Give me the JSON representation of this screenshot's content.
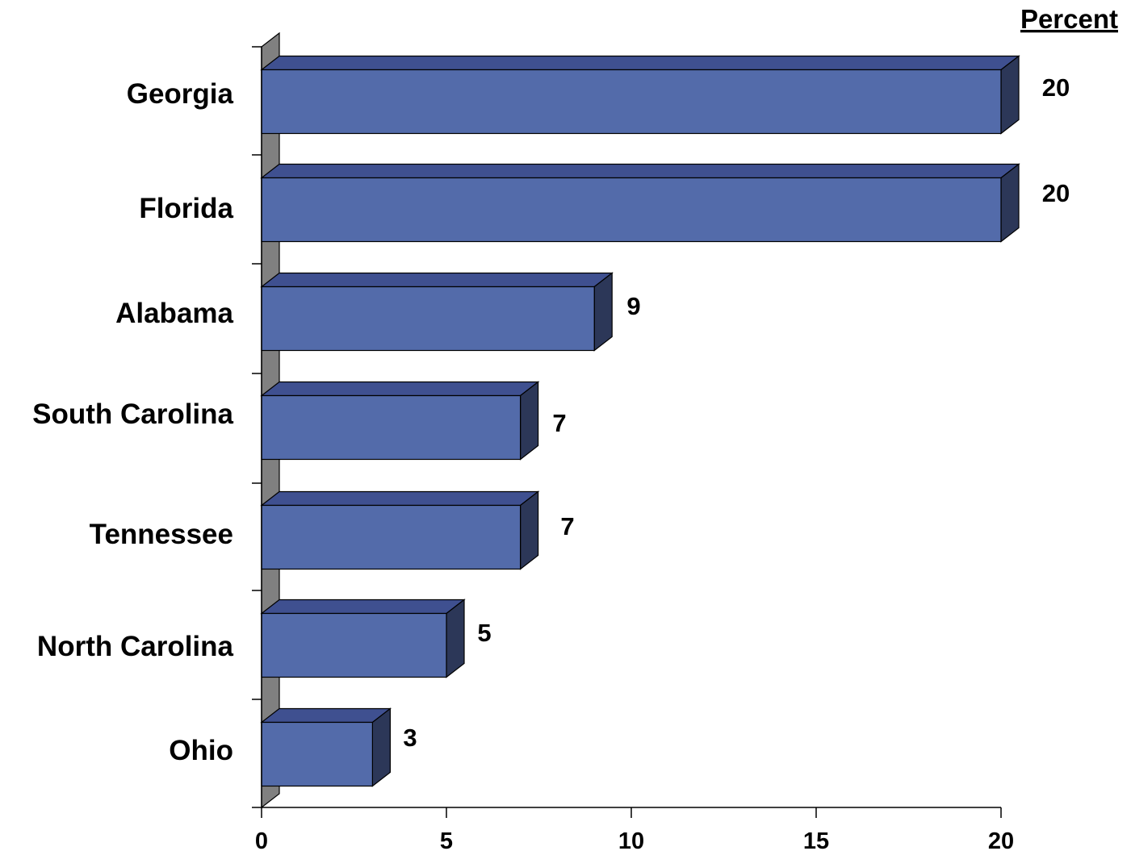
{
  "chart_data": {
    "type": "bar",
    "orientation": "horizontal",
    "three_d": true,
    "unit_label": "Percent",
    "title": "",
    "xlabel": "",
    "ylabel": "",
    "categories": [
      "Georgia",
      "Florida",
      "Alabama",
      "South Carolina",
      "Tennessee",
      "North Carolina",
      "Ohio"
    ],
    "values": [
      20,
      20,
      9,
      7,
      7,
      5,
      3
    ],
    "data_labels": [
      "20",
      "20",
      "9",
      "7",
      "7",
      "5",
      "3"
    ],
    "xlim": [
      0,
      20
    ],
    "x_ticks": [
      "0",
      "5",
      "10",
      "15",
      "20"
    ],
    "grid": false,
    "legend": "none",
    "colors": {
      "bar_front": "#536BAA",
      "bar_top": "#3F5090",
      "bar_side": "#2C3758",
      "axis_wall": "#808080",
      "stroke": "#000000"
    }
  }
}
